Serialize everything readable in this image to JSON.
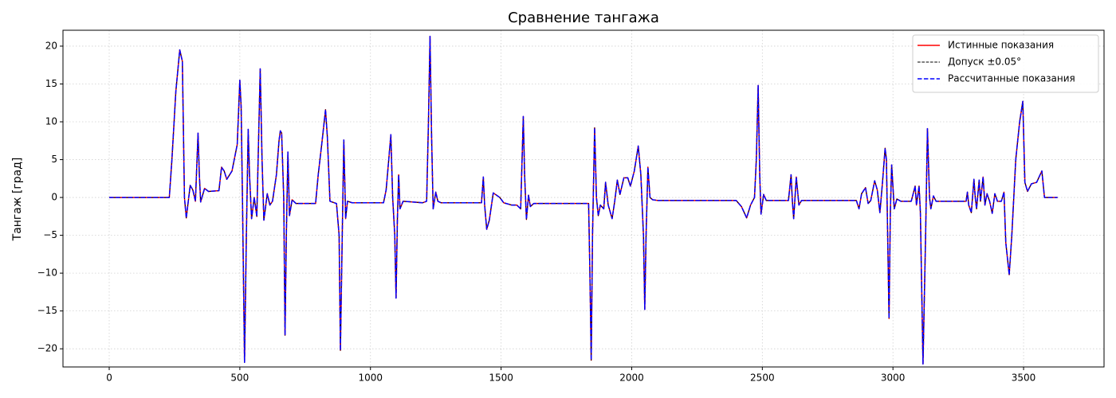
{
  "chart_data": {
    "type": "line",
    "title": "Сравнение тангажа",
    "y_label": "Тангаж [град]",
    "x": [
      0,
      230,
      240,
      255,
      270,
      280,
      288,
      295,
      310,
      320,
      330,
      340,
      345,
      350,
      365,
      380,
      420,
      430,
      440,
      450,
      470,
      490,
      500,
      505,
      510,
      518,
      525,
      532,
      537,
      545,
      555,
      565,
      570,
      578,
      585,
      592,
      605,
      615,
      625,
      640,
      650,
      655,
      660,
      668,
      673,
      678,
      684,
      690,
      700,
      715,
      790,
      800,
      815,
      828,
      835,
      845,
      870,
      880,
      885,
      892,
      898,
      905,
      912,
      930,
      1050,
      1060,
      1070,
      1078,
      1085,
      1093,
      1098,
      1103,
      1108,
      1113,
      1125,
      1200,
      1215,
      1222,
      1228,
      1234,
      1240,
      1250,
      1258,
      1270,
      1425,
      1432,
      1437,
      1445,
      1455,
      1470,
      1495,
      1510,
      1540,
      1560,
      1575,
      1585,
      1590,
      1597,
      1605,
      1612,
      1625,
      1835,
      1840,
      1845,
      1850,
      1858,
      1865,
      1872,
      1880,
      1893,
      1900,
      1910,
      1925,
      1935,
      1945,
      1955,
      1970,
      1985,
      1995,
      2010,
      2025,
      2035,
      2045,
      2050,
      2055,
      2062,
      2070,
      2080,
      2100,
      2400,
      2420,
      2440,
      2455,
      2470,
      2477,
      2484,
      2490,
      2495,
      2505,
      2515,
      2600,
      2610,
      2615,
      2620,
      2630,
      2640,
      2650,
      2860,
      2870,
      2880,
      2895,
      2905,
      2915,
      2930,
      2940,
      2950,
      2960,
      2970,
      2975,
      2985,
      2990,
      2995,
      3005,
      3015,
      3030,
      3070,
      3085,
      3090,
      3100,
      3105,
      3115,
      3125,
      3132,
      3140,
      3145,
      3155,
      3165,
      3280,
      3285,
      3290,
      3300,
      3310,
      3315,
      3320,
      3330,
      3335,
      3345,
      3352,
      3360,
      3370,
      3380,
      3390,
      3400,
      3415,
      3425,
      3432,
      3445,
      3455,
      3470,
      3485,
      3497,
      3505,
      3515,
      3530,
      3550,
      3570,
      3580,
      3630
    ],
    "series": [
      {
        "name": "Истинные показания",
        "color": "#ff0000",
        "dash": "solid",
        "width": 1.5,
        "values": [
          0,
          0,
          5,
          14,
          19.5,
          18,
          0,
          -2.7,
          1.6,
          1,
          -0.5,
          8.5,
          3,
          -0.6,
          1.2,
          0.8,
          0.9,
          4,
          3.5,
          2.4,
          3.5,
          7,
          15.5,
          12,
          0,
          -21.8,
          -5,
          9,
          3,
          -2.8,
          0,
          -2.5,
          5,
          17,
          5,
          -3,
          0.5,
          -1,
          -0.5,
          3,
          7.5,
          8.8,
          8.5,
          0,
          -18.2,
          -5,
          6,
          -2.4,
          -0.3,
          -0.8,
          -0.8,
          3,
          7.5,
          11.6,
          8,
          -0.5,
          -0.8,
          -5,
          -20.2,
          -5,
          7.6,
          -2.8,
          -0.5,
          -0.7,
          -0.7,
          1,
          5,
          8.3,
          0,
          -5,
          -13.3,
          -3,
          3,
          -1.5,
          -0.5,
          -0.7,
          -0.5,
          10,
          21.3,
          8,
          -1.5,
          0.7,
          -0.5,
          -0.7,
          -0.7,
          2.7,
          -1,
          -4.2,
          -3,
          0.6,
          0,
          -0.7,
          -1,
          -1,
          -1.5,
          10.7,
          3,
          -2.9,
          0.3,
          -1.2,
          -0.8,
          -0.8,
          -10,
          -21.5,
          -5,
          9.2,
          0,
          -2.4,
          -1,
          -1.5,
          2,
          -1,
          -2.8,
          -0.5,
          2.3,
          0.4,
          2.6,
          2.6,
          1.5,
          3.5,
          6.8,
          3,
          -5,
          -14.8,
          -5,
          4,
          0,
          -0.3,
          -0.4,
          -0.4,
          -1.2,
          -2.7,
          -1,
          0,
          5,
          14.8,
          3,
          -2.2,
          0.4,
          -0.4,
          -0.4,
          3,
          -0.5,
          -2.8,
          2.7,
          -1,
          -0.4,
          -0.4,
          -1.5,
          0.5,
          1.3,
          -0.8,
          -0.4,
          2.2,
          1,
          -2,
          2,
          6.5,
          5,
          -16,
          -2,
          4.3,
          -1.5,
          -0.2,
          -0.5,
          -0.5,
          1.5,
          -1,
          1.5,
          -2,
          -22,
          -5,
          9.1,
          0,
          -1.5,
          0.2,
          -0.5,
          -0.5,
          0.7,
          -1,
          -2,
          2.4,
          0,
          -1.5,
          2.3,
          -0.5,
          2.7,
          -1,
          0.5,
          -0.5,
          -2.1,
          0.5,
          -0.5,
          -0.5,
          0.7,
          -6,
          -10.2,
          -5,
          5,
          10,
          12.7,
          2,
          0.8,
          1.8,
          2,
          3.5,
          0,
          0
        ]
      },
      {
        "name": "Допуск ±0.05°",
        "color": "#000000",
        "dash": "dashed",
        "width": 1,
        "values": [
          0,
          0,
          5,
          14,
          19.5,
          18,
          0,
          -2.7,
          1.6,
          1,
          -0.5,
          8.5,
          3,
          -0.6,
          1.2,
          0.8,
          0.9,
          4,
          3.5,
          2.4,
          3.5,
          7,
          15.5,
          12,
          0,
          -21.8,
          -5,
          9,
          3,
          -2.8,
          0,
          -2.5,
          5,
          17,
          5,
          -3,
          0.5,
          -1,
          -0.5,
          3,
          7.5,
          8.8,
          8.5,
          0,
          -18.2,
          -5,
          6,
          -2.4,
          -0.3,
          -0.8,
          -0.8,
          3,
          7.5,
          11.6,
          8,
          -0.5,
          -0.8,
          -5,
          -20.2,
          -5,
          7.6,
          -2.8,
          -0.5,
          -0.7,
          -0.7,
          1,
          5,
          8.3,
          0,
          -5,
          -13.3,
          -3,
          3,
          -1.5,
          -0.5,
          -0.7,
          -0.5,
          10,
          21.3,
          8,
          -1.5,
          0.7,
          -0.5,
          -0.7,
          -0.7,
          2.7,
          -1,
          -4.2,
          -3,
          0.6,
          0,
          -0.7,
          -1,
          -1,
          -1.5,
          10.7,
          3,
          -2.9,
          0.3,
          -1.2,
          -0.8,
          -0.8,
          -10,
          -21.5,
          -5,
          9.2,
          0,
          -2.4,
          -1,
          -1.5,
          2,
          -1,
          -2.8,
          -0.5,
          2.3,
          0.4,
          2.6,
          2.6,
          1.5,
          3.5,
          6.8,
          3,
          -5,
          -14.8,
          -5,
          4,
          0,
          -0.3,
          -0.4,
          -0.4,
          -1.2,
          -2.7,
          -1,
          0,
          5,
          14.8,
          3,
          -2.2,
          0.4,
          -0.4,
          -0.4,
          3,
          -0.5,
          -2.8,
          2.7,
          -1,
          -0.4,
          -0.4,
          -1.5,
          0.5,
          1.3,
          -0.8,
          -0.4,
          2.2,
          1,
          -2,
          2,
          6.5,
          5,
          -16,
          -2,
          4.3,
          -1.5,
          -0.2,
          -0.5,
          -0.5,
          1.5,
          -1,
          1.5,
          -2,
          -22,
          -5,
          9.1,
          0,
          -1.5,
          0.2,
          -0.5,
          -0.5,
          0.7,
          -1,
          -2,
          2.4,
          0,
          -1.5,
          2.3,
          -0.5,
          2.7,
          -1,
          0.5,
          -0.5,
          -2.1,
          0.5,
          -0.5,
          -0.5,
          0.7,
          -6,
          -10.2,
          -5,
          5,
          10,
          12.7,
          2,
          0.8,
          1.8,
          2,
          3.5,
          0,
          0
        ]
      },
      {
        "name": "Рассчитанные показания",
        "color": "#0000ff",
        "dash": "dashed",
        "width": 1.5,
        "values": [
          0,
          0,
          5,
          14,
          19.5,
          18,
          0,
          -2.7,
          1.6,
          1,
          -0.5,
          8.5,
          3,
          -0.6,
          1.2,
          0.8,
          0.9,
          4,
          3.5,
          2.4,
          3.5,
          7,
          15.5,
          12,
          0,
          -21.8,
          -5,
          9,
          3,
          -2.8,
          0,
          -2.5,
          5,
          17,
          5,
          -3,
          0.5,
          -1,
          -0.5,
          3,
          7.5,
          8.8,
          8.5,
          0,
          -18.2,
          -5,
          6,
          -2.4,
          -0.3,
          -0.8,
          -0.8,
          3,
          7.5,
          11.6,
          8,
          -0.5,
          -0.8,
          -5,
          -20.2,
          -5,
          7.6,
          -2.8,
          -0.5,
          -0.7,
          -0.7,
          1,
          5,
          8.3,
          0,
          -5,
          -13.3,
          -3,
          3,
          -1.5,
          -0.5,
          -0.7,
          -0.5,
          10,
          21.3,
          8,
          -1.5,
          0.7,
          -0.5,
          -0.7,
          -0.7,
          2.7,
          -1,
          -4.2,
          -3,
          0.6,
          0,
          -0.7,
          -1,
          -1,
          -1.5,
          10.7,
          3,
          -2.9,
          0.3,
          -1.2,
          -0.8,
          -0.8,
          -10,
          -21.5,
          -5,
          9.2,
          0,
          -2.4,
          -1,
          -1.5,
          2,
          -1,
          -2.8,
          -0.5,
          2.3,
          0.4,
          2.6,
          2.6,
          1.5,
          3.5,
          6.8,
          3,
          -5,
          -14.8,
          -5,
          4,
          0,
          -0.3,
          -0.4,
          -0.4,
          -1.2,
          -2.7,
          -1,
          0,
          5,
          14.8,
          3,
          -2.2,
          0.4,
          -0.4,
          -0.4,
          3,
          -0.5,
          -2.8,
          2.7,
          -1,
          -0.4,
          -0.4,
          -1.5,
          0.5,
          1.3,
          -0.8,
          -0.4,
          2.2,
          1,
          -2,
          2,
          6.5,
          5,
          -16,
          -2,
          4.3,
          -1.5,
          -0.2,
          -0.5,
          -0.5,
          1.5,
          -1,
          1.5,
          -2,
          -22,
          -5,
          9.1,
          0,
          -1.5,
          0.2,
          -0.5,
          -0.5,
          0.7,
          -1,
          -2,
          2.4,
          0,
          -1.5,
          2.3,
          -0.5,
          2.7,
          -1,
          0.5,
          -0.5,
          -2.1,
          0.5,
          -0.5,
          -0.5,
          0.7,
          -6,
          -10.2,
          -5,
          5,
          10,
          12.7,
          2,
          0.8,
          1.8,
          2,
          3.5,
          0,
          0
        ]
      }
    ],
    "xlim": [
      -177,
      3808
    ],
    "ylim": [
      -22.4,
      22.1
    ],
    "xticks": [
      0,
      500,
      1000,
      1500,
      2000,
      2500,
      3000,
      3500
    ],
    "yticks": [
      {
        "value": -20,
        "label": "−20"
      },
      {
        "value": -15,
        "label": "−15"
      },
      {
        "value": -10,
        "label": "−10"
      },
      {
        "value": -5,
        "label": "−5"
      },
      0,
      5,
      10,
      15,
      20
    ],
    "grid": true,
    "legend": "upper-right"
  }
}
